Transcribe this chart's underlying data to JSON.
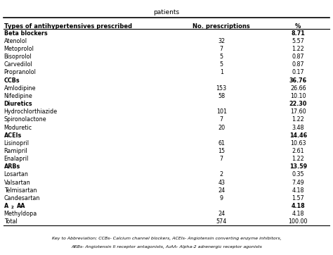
{
  "title": "patients",
  "col_headers": [
    "Types of antihypertensives prescribed",
    "No. prescriptions",
    "%"
  ],
  "rows": [
    {
      "label": "Beta blockers",
      "no": "",
      "pct": "8.71",
      "bold": true
    },
    {
      "label": "Atenolol",
      "no": "32",
      "pct": "5.57",
      "bold": false
    },
    {
      "label": "Metoprolol",
      "no": "7",
      "pct": "1.22",
      "bold": false
    },
    {
      "label": "Bisoprolol",
      "no": "5",
      "pct": "0.87",
      "bold": false
    },
    {
      "label": "Carvedilol",
      "no": "5",
      "pct": "0.87",
      "bold": false
    },
    {
      "label": "Propranolol",
      "no": "1",
      "pct": "0.17",
      "bold": false
    },
    {
      "label": "CCBs",
      "no": "",
      "pct": "36.76",
      "bold": true
    },
    {
      "label": "Amlodipine",
      "no": "153",
      "pct": "26.66",
      "bold": false
    },
    {
      "label": "Nifedipine",
      "no": "58",
      "pct": "10.10",
      "bold": false
    },
    {
      "label": "Diuretics",
      "no": "",
      "pct": "22.30",
      "bold": true
    },
    {
      "label": "Hydrochlorthiazide",
      "no": "101",
      "pct": "17.60",
      "bold": false
    },
    {
      "label": "Spironolactone",
      "no": "7",
      "pct": "1.22",
      "bold": false
    },
    {
      "label": "Moduretic",
      "no": "20",
      "pct": "3.48",
      "bold": false
    },
    {
      "label": "ACEIs",
      "no": "",
      "pct": "14.46",
      "bold": true
    },
    {
      "label": "Lisinopril",
      "no": "61",
      "pct": "10.63",
      "bold": false
    },
    {
      "label": "Ramipril",
      "no": "15",
      "pct": "2.61",
      "bold": false
    },
    {
      "label": "Enalapril",
      "no": "7",
      "pct": "1.22",
      "bold": false
    },
    {
      "label": "ARBs",
      "no": "",
      "pct": "13.59",
      "bold": true
    },
    {
      "label": "Losartan",
      "no": "2",
      "pct": "0.35",
      "bold": false
    },
    {
      "label": "Valsartan",
      "no": "43",
      "pct": "7.49",
      "bold": false
    },
    {
      "label": "Telmisartan",
      "no": "24",
      "pct": "4.18",
      "bold": false
    },
    {
      "label": "Candesartan",
      "no": "9",
      "pct": "1.57",
      "bold": false
    },
    {
      "label": "A₂AA",
      "no": "",
      "pct": "4.18",
      "bold": true
    },
    {
      "label": "Methyldopa",
      "no": "24",
      "pct": "4.18",
      "bold": false
    },
    {
      "label": "Total",
      "no": "574",
      "pct": "100.00",
      "bold": false
    }
  ],
  "footer_line1": "Key to Abbreviation; CCBs- Calcium channel blockers, ACEIs- Angiotensin converting enzyme inhibitors,",
  "footer_line2": "ARBs- Angiotensin II receptor antagonists, A₂AA- Alpha-2 adrenergic receptor agonists",
  "bg_color": "#ffffff",
  "text_color": "#000000",
  "figwidth": 4.74,
  "figheight": 3.62,
  "dpi": 100
}
